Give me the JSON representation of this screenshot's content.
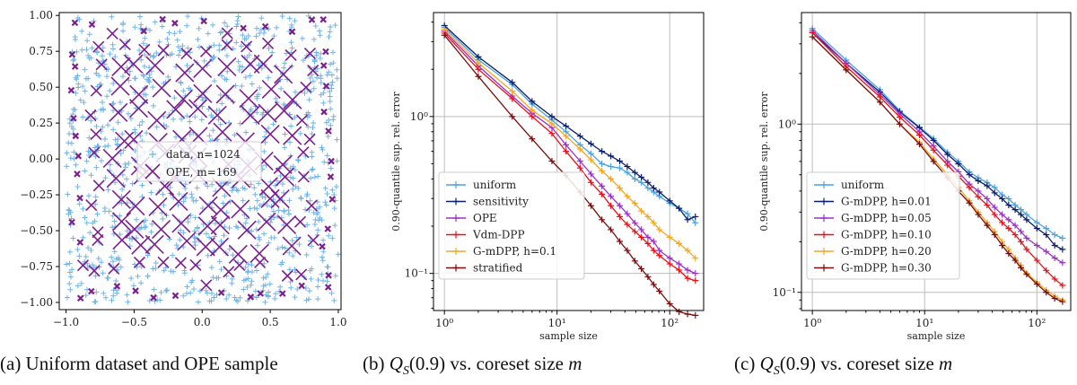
{
  "captions": {
    "a": "(a) Uniform dataset and OPE sample",
    "b_prefix": "(b) ",
    "b_math": "Q",
    "b_sub": "S",
    "b_arg": "(0.9)",
    "b_rest": " vs. coreset size ",
    "b_var": "m",
    "c_prefix": "(c) ",
    "c_math": "Q",
    "c_sub": "S",
    "c_arg": "(0.9)",
    "c_rest": " vs. coreset size ",
    "c_var": "m"
  },
  "chart_data": [
    {
      "type": "scatter",
      "xlim": [
        -1.05,
        1.02
      ],
      "ylim": [
        -1.05,
        1.02
      ],
      "xticks": [
        -1.0,
        -0.5,
        0.0,
        0.5,
        1.0
      ],
      "xtick_labels": [
        "−1.0",
        "−0.5",
        "0.0",
        "0.5",
        "1.0"
      ],
      "yticks": [
        -1.0,
        -0.75,
        -0.5,
        -0.25,
        0.0,
        0.25,
        0.5,
        0.75,
        1.0
      ],
      "ytick_labels": [
        "−1.00",
        "−0.75",
        "−0.50",
        "−0.25",
        "0.00",
        "0.25",
        "0.50",
        "0.75",
        "1.00"
      ],
      "legend_position": "center",
      "series": [
        {
          "name": "data, n=1024",
          "marker": "plus",
          "color": "#6fb4e8",
          "count": 1024
        },
        {
          "name": "OPE, m=169",
          "marker": "cross",
          "color": "#7b1f8e",
          "count": 169
        }
      ]
    },
    {
      "type": "line",
      "xscale": "log",
      "yscale": "log",
      "xlabel": "sample size",
      "ylabel": "0.90-quantile sup. rel. error",
      "xlim": [
        0.8,
        200
      ],
      "ylim": [
        0.058,
        4.6
      ],
      "xticks": [
        1,
        10,
        100
      ],
      "xtick_labels": [
        "10⁰",
        "10¹",
        "10²"
      ],
      "yticks": [
        0.1,
        1
      ],
      "ytick_labels": [
        "10⁻¹",
        "10⁰"
      ],
      "grid": true,
      "legend_position": "lower-left",
      "x": [
        1,
        2,
        4,
        6,
        9,
        12,
        16,
        20,
        25,
        30,
        36,
        42,
        49,
        56,
        64,
        72,
        81,
        100,
        121,
        144,
        169
      ],
      "series": [
        {
          "name": "uniform",
          "color": "#4aa3e0",
          "values": [
            3.7,
            2.3,
            1.6,
            1.2,
            0.95,
            0.8,
            0.66,
            0.58,
            0.5,
            0.48,
            0.47,
            0.44,
            0.4,
            0.38,
            0.35,
            0.33,
            0.31,
            0.28,
            0.26,
            0.24,
            0.21
          ]
        },
        {
          "name": "sensitivity",
          "color": "#0b1f6e",
          "values": [
            3.8,
            2.4,
            1.65,
            1.25,
            1.0,
            0.87,
            0.75,
            0.67,
            0.6,
            0.56,
            0.52,
            0.48,
            0.44,
            0.41,
            0.38,
            0.35,
            0.33,
            0.29,
            0.26,
            0.22,
            0.23
          ]
        },
        {
          "name": "OPE",
          "color": "#9b30c8",
          "values": [
            3.5,
            2.1,
            1.35,
            1.05,
            0.85,
            0.66,
            0.52,
            0.43,
            0.36,
            0.31,
            0.27,
            0.24,
            0.21,
            0.19,
            0.17,
            0.16,
            0.14,
            0.125,
            0.115,
            0.105,
            0.1
          ]
        },
        {
          "name": "Vdm-DPP",
          "color": "#e8111b",
          "values": [
            3.4,
            2.0,
            1.3,
            1.0,
            0.78,
            0.6,
            0.47,
            0.38,
            0.32,
            0.27,
            0.23,
            0.205,
            0.185,
            0.17,
            0.155,
            0.14,
            0.13,
            0.115,
            0.105,
            0.093,
            0.09
          ]
        },
        {
          "name": "G-mDPP, h=0.1",
          "color": "#f5a623",
          "values": [
            3.6,
            2.2,
            1.45,
            1.1,
            0.9,
            0.75,
            0.62,
            0.53,
            0.45,
            0.4,
            0.35,
            0.31,
            0.28,
            0.25,
            0.23,
            0.21,
            0.19,
            0.17,
            0.155,
            0.14,
            0.125
          ]
        },
        {
          "name": "stratified",
          "color": "#7a0d0d",
          "values": [
            3.3,
            1.8,
            1.0,
            0.72,
            0.52,
            0.42,
            0.33,
            0.27,
            0.22,
            0.19,
            0.16,
            0.14,
            0.12,
            0.107,
            0.095,
            0.085,
            0.077,
            0.064,
            0.057,
            0.055,
            0.054
          ]
        }
      ]
    },
    {
      "type": "line",
      "xscale": "log",
      "yscale": "log",
      "xlabel": "sample size",
      "ylabel": "0.90-quantile sup. rel. error",
      "xlim": [
        0.8,
        200
      ],
      "ylim": [
        0.078,
        4.6
      ],
      "xticks": [
        1,
        10,
        100
      ],
      "xtick_labels": [
        "10⁰",
        "10¹",
        "10²"
      ],
      "yticks": [
        0.1,
        1
      ],
      "ytick_labels": [
        "10⁻¹",
        "10⁰"
      ],
      "grid": true,
      "legend_position": "lower-left",
      "x": [
        1,
        2,
        4,
        6,
        9,
        12,
        16,
        20,
        25,
        30,
        36,
        42,
        49,
        56,
        64,
        72,
        81,
        100,
        121,
        144,
        169
      ],
      "series": [
        {
          "name": "uniform",
          "color": "#4aa3e0",
          "values": [
            3.7,
            2.4,
            1.6,
            1.2,
            0.96,
            0.82,
            0.68,
            0.6,
            0.52,
            0.48,
            0.45,
            0.42,
            0.38,
            0.36,
            0.33,
            0.31,
            0.29,
            0.26,
            0.24,
            0.22,
            0.21
          ]
        },
        {
          "name": "G-mDPP, h=0.01",
          "color": "#0b1f6e",
          "values": [
            3.5,
            2.3,
            1.55,
            1.18,
            0.95,
            0.8,
            0.66,
            0.58,
            0.5,
            0.46,
            0.43,
            0.39,
            0.36,
            0.33,
            0.31,
            0.29,
            0.27,
            0.24,
            0.22,
            0.19,
            0.18
          ]
        },
        {
          "name": "G-mDPP, h=0.05",
          "color": "#9b30c8",
          "values": [
            3.6,
            2.3,
            1.5,
            1.15,
            0.9,
            0.74,
            0.6,
            0.52,
            0.44,
            0.4,
            0.36,
            0.32,
            0.29,
            0.27,
            0.25,
            0.23,
            0.21,
            0.19,
            0.175,
            0.16,
            0.15
          ]
        },
        {
          "name": "G-mDPP, h=0.10",
          "color": "#e8111b",
          "values": [
            3.5,
            2.2,
            1.45,
            1.1,
            0.86,
            0.7,
            0.57,
            0.49,
            0.42,
            0.37,
            0.33,
            0.29,
            0.26,
            0.24,
            0.22,
            0.2,
            0.18,
            0.155,
            0.135,
            0.12,
            0.11
          ]
        },
        {
          "name": "G-mDPP, h=0.20",
          "color": "#f5a623",
          "values": [
            3.3,
            2.1,
            1.35,
            1.0,
            0.78,
            0.62,
            0.5,
            0.42,
            0.35,
            0.3,
            0.26,
            0.23,
            0.2,
            0.18,
            0.16,
            0.145,
            0.13,
            0.115,
            0.103,
            0.095,
            0.09
          ]
        },
        {
          "name": "G-mDPP, h=0.30",
          "color": "#7a0d0d",
          "values": [
            3.3,
            2.1,
            1.35,
            1.0,
            0.76,
            0.6,
            0.48,
            0.4,
            0.34,
            0.29,
            0.25,
            0.22,
            0.19,
            0.17,
            0.155,
            0.14,
            0.128,
            0.112,
            0.1,
            0.092,
            0.088
          ]
        }
      ]
    }
  ]
}
